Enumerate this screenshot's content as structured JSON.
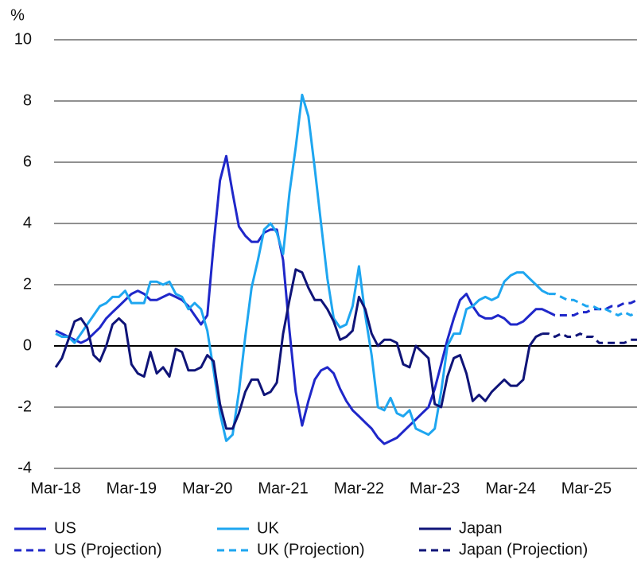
{
  "chart_data": {
    "type": "line",
    "ylabel": "%",
    "categories": [
      "Mar-18",
      null,
      null,
      null,
      null,
      null,
      null,
      null,
      null,
      null,
      null,
      null,
      "Mar-19",
      null,
      null,
      null,
      null,
      null,
      null,
      null,
      null,
      null,
      null,
      null,
      "Mar-20",
      null,
      null,
      null,
      null,
      null,
      null,
      null,
      null,
      null,
      null,
      null,
      "Mar-21",
      null,
      null,
      null,
      null,
      null,
      null,
      null,
      null,
      null,
      null,
      null,
      "Mar-22",
      null,
      null,
      null,
      null,
      null,
      null,
      null,
      null,
      null,
      null,
      null,
      "Mar-23",
      null,
      null,
      null,
      null,
      null,
      null,
      null,
      null,
      null,
      null,
      null,
      "Mar-24",
      null,
      null,
      null,
      null,
      null,
      null,
      null,
      null,
      null,
      null,
      null,
      "Mar-25",
      null,
      null,
      null,
      null,
      null,
      null,
      null,
      null
    ],
    "ylim": [
      -4,
      10
    ],
    "yticks": [
      -4,
      -2,
      0,
      2,
      4,
      6,
      8,
      10
    ],
    "grid": true,
    "legend": "bottom",
    "series": [
      {
        "name": "US",
        "color": "#1f27c9",
        "dashed": false,
        "values": [
          0.5,
          0.4,
          0.3,
          0.2,
          0.1,
          0.2,
          0.4,
          0.6,
          0.9,
          1.1,
          1.3,
          1.5,
          1.7,
          1.8,
          1.7,
          1.5,
          1.5,
          1.6,
          1.7,
          1.6,
          1.5,
          1.3,
          1.0,
          0.7,
          1.0,
          3.3,
          5.4,
          6.2,
          5.0,
          3.9,
          3.6,
          3.4,
          3.4,
          3.7,
          3.8,
          3.8,
          2.8,
          0.5,
          -1.5,
          -2.6,
          -1.8,
          -1.1,
          -0.8,
          -0.7,
          -0.9,
          -1.4,
          -1.8,
          -2.1,
          -2.3,
          -2.5,
          -2.7,
          -3.0,
          -3.2,
          -3.1,
          -3.0,
          -2.8,
          -2.6,
          -2.4,
          -2.2,
          -2.0,
          -1.4,
          -0.6,
          0.2,
          0.9,
          1.5,
          1.7,
          1.3,
          1.0,
          0.9,
          0.9,
          1.0,
          0.9,
          0.7,
          0.7,
          0.8,
          1.0,
          1.2,
          1.2,
          1.1,
          null,
          null,
          null,
          null,
          null,
          null,
          null,
          null,
          null,
          null,
          null,
          null,
          null,
          null
        ]
      },
      {
        "name": "UK",
        "color": "#1ea6f0",
        "dashed": false,
        "values": [
          0.4,
          0.3,
          0.3,
          0.1,
          0.4,
          0.7,
          1.0,
          1.3,
          1.4,
          1.6,
          1.6,
          1.8,
          1.4,
          1.4,
          1.4,
          2.1,
          2.1,
          2.0,
          2.1,
          1.7,
          1.6,
          1.2,
          1.4,
          1.2,
          0.5,
          -0.8,
          -2.2,
          -3.1,
          -2.9,
          -1.5,
          0.3,
          1.9,
          2.8,
          3.8,
          4.0,
          3.7,
          3.0,
          5.0,
          6.5,
          8.2,
          7.5,
          5.8,
          4.0,
          2.2,
          0.9,
          0.6,
          0.7,
          1.3,
          2.6,
          1.0,
          -0.3,
          -2.0,
          -2.1,
          -1.7,
          -2.2,
          -2.3,
          -2.1,
          -2.7,
          -2.8,
          -2.9,
          -2.7,
          -1.5,
          0.0,
          0.4,
          0.4,
          1.2,
          1.3,
          1.5,
          1.6,
          1.5,
          1.6,
          2.1,
          2.3,
          2.4,
          2.4,
          2.2,
          2.0,
          1.8,
          1.7,
          null,
          null,
          null,
          null,
          null,
          null,
          null,
          null,
          null,
          null,
          null,
          null,
          null,
          null
        ]
      },
      {
        "name": "Japan",
        "color": "#0f1478",
        "dashed": false,
        "values": [
          -0.7,
          -0.4,
          0.2,
          0.8,
          0.9,
          0.6,
          -0.3,
          -0.5,
          0.0,
          0.7,
          0.9,
          0.7,
          -0.6,
          -0.9,
          -1.0,
          -0.2,
          -0.9,
          -0.7,
          -1.0,
          -0.1,
          -0.2,
          -0.8,
          -0.8,
          -0.7,
          -0.3,
          -0.5,
          -1.9,
          -2.7,
          -2.7,
          -2.2,
          -1.5,
          -1.1,
          -1.1,
          -1.6,
          -1.5,
          -1.2,
          0.4,
          1.5,
          2.5,
          2.4,
          1.9,
          1.5,
          1.5,
          1.2,
          0.8,
          0.2,
          0.3,
          0.5,
          1.6,
          1.2,
          0.4,
          0.0,
          0.2,
          0.2,
          0.1,
          -0.6,
          -0.7,
          0.0,
          -0.2,
          -0.4,
          -1.9,
          -2.0,
          -1.0,
          -0.4,
          -0.3,
          -0.9,
          -1.8,
          -1.6,
          -1.8,
          -1.5,
          -1.3,
          -1.1,
          -1.3,
          -1.3,
          -1.1,
          0.0,
          0.3,
          0.4,
          null,
          null,
          null,
          null,
          null,
          null,
          null,
          null,
          null,
          null,
          null,
          null,
          null,
          null,
          null
        ]
      },
      {
        "name": "US (Projection)",
        "color": "#1f27c9",
        "dashed": true,
        "values": [
          null,
          null,
          null,
          null,
          null,
          null,
          null,
          null,
          null,
          null,
          null,
          null,
          null,
          null,
          null,
          null,
          null,
          null,
          null,
          null,
          null,
          null,
          null,
          null,
          null,
          null,
          null,
          null,
          null,
          null,
          null,
          null,
          null,
          null,
          null,
          null,
          null,
          null,
          null,
          null,
          null,
          null,
          null,
          null,
          null,
          null,
          null,
          null,
          null,
          null,
          null,
          null,
          null,
          null,
          null,
          null,
          null,
          null,
          null,
          null,
          null,
          null,
          null,
          null,
          null,
          null,
          null,
          null,
          null,
          null,
          null,
          null,
          null,
          null,
          null,
          null,
          null,
          null,
          1.1,
          1.0,
          1.0,
          1.0,
          1.0,
          1.1,
          1.1,
          1.2,
          1.2,
          1.2,
          1.3,
          1.3,
          1.4,
          1.4,
          1.5
        ]
      },
      {
        "name": "UK (Projection)",
        "color": "#1ea6f0",
        "dashed": true,
        "values": [
          null,
          null,
          null,
          null,
          null,
          null,
          null,
          null,
          null,
          null,
          null,
          null,
          null,
          null,
          null,
          null,
          null,
          null,
          null,
          null,
          null,
          null,
          null,
          null,
          null,
          null,
          null,
          null,
          null,
          null,
          null,
          null,
          null,
          null,
          null,
          null,
          null,
          null,
          null,
          null,
          null,
          null,
          null,
          null,
          null,
          null,
          null,
          null,
          null,
          null,
          null,
          null,
          null,
          null,
          null,
          null,
          null,
          null,
          null,
          null,
          null,
          null,
          null,
          null,
          null,
          null,
          null,
          null,
          null,
          null,
          null,
          null,
          null,
          null,
          null,
          null,
          null,
          null,
          1.7,
          1.7,
          1.6,
          1.5,
          1.5,
          1.4,
          1.3,
          1.3,
          1.2,
          1.2,
          1.1,
          1.0,
          1.1,
          1.0,
          1.1
        ]
      },
      {
        "name": "Japan (Projection)",
        "color": "#0f1478",
        "dashed": true,
        "values": [
          null,
          null,
          null,
          null,
          null,
          null,
          null,
          null,
          null,
          null,
          null,
          null,
          null,
          null,
          null,
          null,
          null,
          null,
          null,
          null,
          null,
          null,
          null,
          null,
          null,
          null,
          null,
          null,
          null,
          null,
          null,
          null,
          null,
          null,
          null,
          null,
          null,
          null,
          null,
          null,
          null,
          null,
          null,
          null,
          null,
          null,
          null,
          null,
          null,
          null,
          null,
          null,
          null,
          null,
          null,
          null,
          null,
          null,
          null,
          null,
          null,
          null,
          null,
          null,
          null,
          null,
          null,
          null,
          null,
          null,
          null,
          null,
          null,
          null,
          null,
          null,
          null,
          0.4,
          0.4,
          0.3,
          0.4,
          0.3,
          0.3,
          0.4,
          0.3,
          0.3,
          0.1,
          0.1,
          0.1,
          0.1,
          0.1,
          0.2,
          0.2
        ]
      }
    ]
  }
}
